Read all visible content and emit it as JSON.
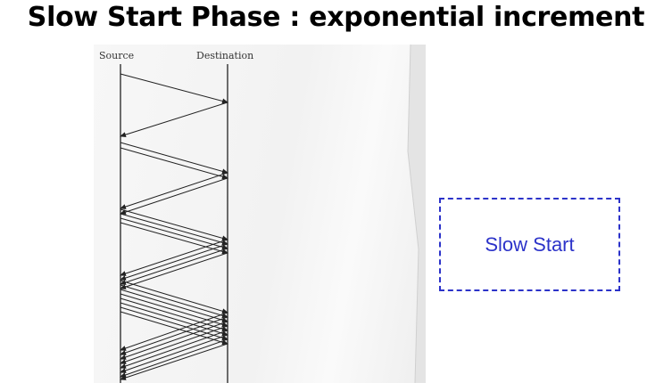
{
  "slide": {
    "title": "Slow Start Phase : exponential increment"
  },
  "diagram": {
    "source_label": "Source",
    "destination_label": "Destination",
    "line_color": "#222222",
    "rounds": [
      {
        "segments": 1,
        "acks": 1
      },
      {
        "segments": 2,
        "acks": 2
      },
      {
        "segments": 4,
        "acks": 4
      },
      {
        "segments": 8,
        "acks": 8
      }
    ]
  },
  "callout": {
    "label": "Slow Start",
    "color": "#2c33c9"
  }
}
